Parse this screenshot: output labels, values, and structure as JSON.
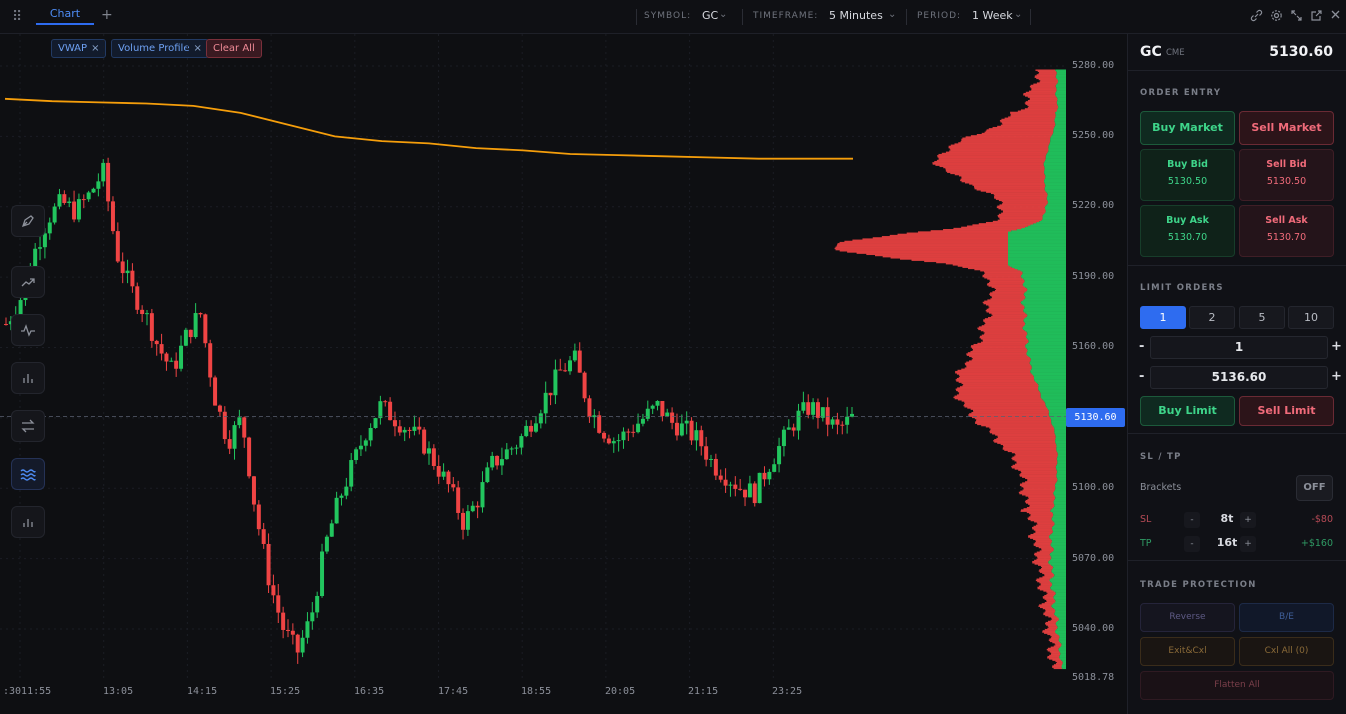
{
  "topbar": {
    "tab_label": "Chart",
    "add_tab": "+",
    "symbol_label": "SYMBOL:",
    "symbol_value": "GC",
    "timeframe_label": "TIMEFRAME:",
    "timeframe_value": "5 Minutes",
    "period_label": "PERIOD:",
    "period_value": "1 Week"
  },
  "indicators": {
    "vwap": "VWAP",
    "volume_profile": "Volume Profile",
    "clear_all": "Clear All"
  },
  "chart_data": {
    "type": "candlestick",
    "price_axis": [
      "5280.00",
      "5250.00",
      "5220.00",
      "5190.00",
      "5160.00",
      "5100.00",
      "5070.00",
      "5040.00",
      "5018.78"
    ],
    "time_axis": [
      ":3011:55",
      "13:05",
      "14:15",
      "15:25",
      "16:35",
      "17:45",
      "18:55",
      "20:05",
      "21:15",
      "23:25"
    ],
    "last_price": "5130.60",
    "ylim": [
      5018.78,
      5280.0
    ],
    "vwap_color": "#f59e0b",
    "up_color": "#22c55e",
    "down_color": "#ef4444",
    "vwap_values": [
      5266,
      5265,
      5264.5,
      5264,
      5263,
      5260,
      5255,
      5250,
      5248,
      5247,
      5245,
      5244,
      5242.5,
      5242,
      5241.5,
      5241,
      5240.5,
      5240.5,
      5240.5
    ],
    "close_path": [
      5170,
      5180,
      5200,
      5215,
      5222,
      5218,
      5225,
      5235,
      5200,
      5185,
      5175,
      5160,
      5150,
      5165,
      5175,
      5140,
      5120,
      5130,
      5090,
      5060,
      5040,
      5030,
      5045,
      5075,
      5095,
      5110,
      5125,
      5135,
      5130,
      5125,
      5120,
      5110,
      5100,
      5085,
      5095,
      5110,
      5115,
      5120,
      5130,
      5140,
      5150,
      5155,
      5135,
      5125,
      5120,
      5125,
      5130,
      5135,
      5128,
      5125,
      5120,
      5110,
      5105,
      5100,
      5098,
      5110,
      5120,
      5130,
      5135,
      5130,
      5125,
      5130
    ]
  },
  "right_panel": {
    "symbol": "GC",
    "exchange": "CME",
    "price": "5130.60",
    "order_entry_title": "ORDER ENTRY",
    "buy_market": "Buy Market",
    "sell_market": "Sell Market",
    "buy_bid": "Buy Bid",
    "buy_bid_price": "5130.50",
    "sell_bid": "Sell Bid",
    "sell_bid_price": "5130.50",
    "buy_ask": "Buy Ask",
    "buy_ask_price": "5130.70",
    "sell_ask": "Sell Ask",
    "sell_ask_price": "5130.70",
    "limit_orders_title": "LIMIT ORDERS",
    "qty_options": [
      "1",
      "2",
      "5",
      "10"
    ],
    "qty_value": "1",
    "limit_price": "5136.60",
    "minus": "-",
    "plus": "+",
    "buy_limit": "Buy Limit",
    "sell_limit": "Sell Limit",
    "sltp_title": "SL / TP",
    "brackets_label": "Brackets",
    "brackets_toggle": "OFF",
    "sl_label": "SL",
    "sl_ticks": "8t",
    "sl_value": "-$80",
    "tp_label": "TP",
    "tp_ticks": "16t",
    "tp_value": "+$160",
    "protection_title": "TRADE PROTECTION",
    "reverse": "Reverse",
    "breakeven": "B/E",
    "exit_cxl": "Exit&Cxl",
    "cxl_all": "Cxl All (0)",
    "flatten_all": "Flatten All"
  }
}
